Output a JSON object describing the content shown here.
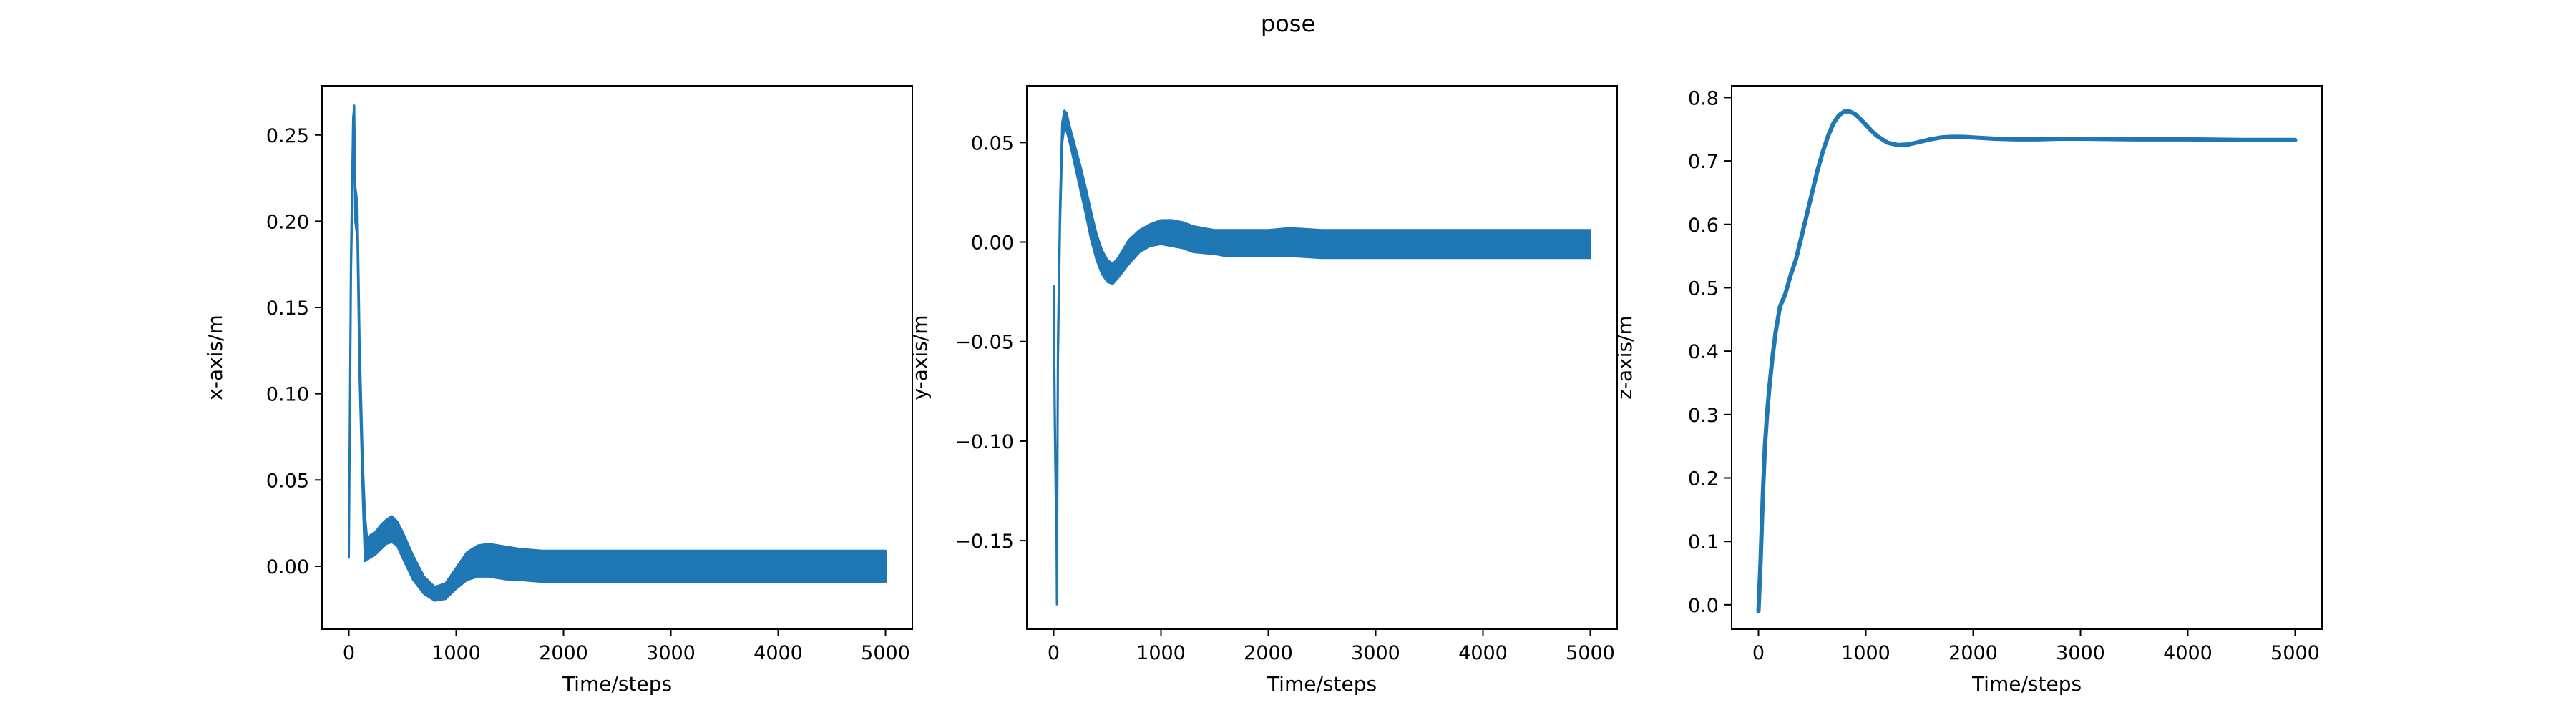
{
  "figure": {
    "title": "pose",
    "line_color": "#1f77b4"
  },
  "chart_data": [
    {
      "type": "line",
      "title": "",
      "xlabel": "Time/steps",
      "ylabel": "x-axis/m",
      "xlim": [
        -250,
        5250
      ],
      "ylim": [
        -0.0365,
        0.2785
      ],
      "xticks": [
        0,
        1000,
        2000,
        3000,
        4000,
        5000
      ],
      "xtick_labels": [
        "0",
        "1000",
        "2000",
        "3000",
        "4000",
        "5000"
      ],
      "yticks": [
        0.0,
        0.05,
        0.1,
        0.15,
        0.2,
        0.25
      ],
      "ytick_labels": [
        "0.00",
        "0.05",
        "0.10",
        "0.15",
        "0.20",
        "0.25"
      ],
      "grid": false,
      "series": [
        {
          "x": [
            0,
            20,
            40,
            50,
            60,
            80,
            100,
            130,
            150,
            170,
            200,
            250,
            300,
            350,
            400,
            450,
            500,
            600,
            700,
            800,
            900,
            1000,
            1100,
            1200,
            1300,
            1400,
            1500,
            1600,
            1800,
            2000,
            2500,
            3000,
            4000,
            5000
          ],
          "y_upper": [
            0.005,
            0.18,
            0.26,
            0.267,
            0.22,
            0.21,
            0.13,
            0.06,
            0.03,
            0.016,
            0.018,
            0.02,
            0.024,
            0.027,
            0.029,
            0.026,
            0.02,
            0.006,
            -0.006,
            -0.012,
            -0.01,
            -0.001,
            0.008,
            0.012,
            0.013,
            0.012,
            0.011,
            0.01,
            0.009,
            0.009,
            0.009,
            0.009,
            0.009,
            0.009
          ],
          "y_lower": [
            0.005,
            0.17,
            0.24,
            0.25,
            0.2,
            0.19,
            0.11,
            0.04,
            0.003,
            0.004,
            0.005,
            0.007,
            0.01,
            0.013,
            0.014,
            0.012,
            0.005,
            -0.008,
            -0.016,
            -0.02,
            -0.019,
            -0.013,
            -0.008,
            -0.006,
            -0.006,
            -0.007,
            -0.008,
            -0.008,
            -0.009,
            -0.009,
            -0.009,
            -0.009,
            -0.009,
            -0.009
          ]
        }
      ]
    },
    {
      "type": "line",
      "title": "",
      "xlabel": "Time/steps",
      "ylabel": "y-axis/m",
      "xlim": [
        -250,
        5250
      ],
      "ylim": [
        -0.1945,
        0.0785
      ],
      "xticks": [
        0,
        1000,
        2000,
        3000,
        4000,
        5000
      ],
      "xtick_labels": [
        "0",
        "1000",
        "2000",
        "3000",
        "4000",
        "5000"
      ],
      "yticks": [
        -0.15,
        -0.1,
        -0.05,
        0.0,
        0.05
      ],
      "ytick_labels": [
        "−0.15",
        "−0.10",
        "−0.05",
        "0.00",
        "0.05"
      ],
      "grid": false,
      "series": [
        {
          "x": [
            0,
            10,
            20,
            25,
            30,
            40,
            60,
            80,
            100,
            120,
            150,
            200,
            250,
            300,
            350,
            400,
            450,
            500,
            550,
            600,
            700,
            800,
            900,
            1000,
            1100,
            1200,
            1300,
            1500,
            1600,
            1800,
            2000,
            2200,
            2500,
            3000,
            4000,
            5000
          ],
          "y_upper": [
            -0.022,
            -0.08,
            -0.125,
            -0.13,
            -0.182,
            -0.05,
            0.02,
            0.06,
            0.066,
            0.065,
            0.058,
            0.048,
            0.038,
            0.027,
            0.015,
            0.004,
            -0.004,
            -0.009,
            -0.011,
            -0.008,
            0.001,
            0.006,
            0.009,
            0.011,
            0.011,
            0.01,
            0.008,
            0.006,
            0.006,
            0.006,
            0.006,
            0.007,
            0.006,
            0.006,
            0.006,
            0.006
          ],
          "y_lower": [
            -0.022,
            -0.09,
            -0.13,
            -0.135,
            -0.182,
            -0.06,
            0.01,
            0.05,
            0.058,
            0.056,
            0.05,
            0.038,
            0.026,
            0.014,
            0.001,
            -0.009,
            -0.016,
            -0.02,
            -0.021,
            -0.018,
            -0.011,
            -0.005,
            -0.002,
            -0.001,
            -0.002,
            -0.003,
            -0.005,
            -0.006,
            -0.007,
            -0.007,
            -0.007,
            -0.007,
            -0.008,
            -0.008,
            -0.008,
            -0.008
          ]
        }
      ]
    },
    {
      "type": "line",
      "title": "",
      "xlabel": "Time/steps",
      "ylabel": "z-axis/m",
      "xlim": [
        -250,
        5250
      ],
      "ylim": [
        -0.0385,
        0.8185
      ],
      "xticks": [
        0,
        1000,
        2000,
        3000,
        4000,
        5000
      ],
      "xtick_labels": [
        "0",
        "1000",
        "2000",
        "3000",
        "4000",
        "5000"
      ],
      "yticks": [
        0.0,
        0.1,
        0.2,
        0.3,
        0.4,
        0.5,
        0.6,
        0.7,
        0.8
      ],
      "ytick_labels": [
        "0.0",
        "0.1",
        "0.2",
        "0.3",
        "0.4",
        "0.5",
        "0.6",
        "0.7",
        "0.8"
      ],
      "grid": false,
      "series": [
        {
          "x": [
            0,
            20,
            40,
            60,
            80,
            100,
            130,
            160,
            200,
            250,
            300,
            350,
            400,
            450,
            500,
            550,
            600,
            650,
            700,
            750,
            800,
            850,
            900,
            950,
            1000,
            1050,
            1100,
            1200,
            1300,
            1400,
            1500,
            1600,
            1700,
            1800,
            1900,
            2000,
            2200,
            2400,
            2600,
            2800,
            3000,
            3500,
            4000,
            4500,
            5000
          ],
          "y": [
            -0.01,
            0.07,
            0.17,
            0.25,
            0.3,
            0.34,
            0.39,
            0.43,
            0.47,
            0.49,
            0.52,
            0.545,
            0.58,
            0.615,
            0.65,
            0.685,
            0.715,
            0.74,
            0.76,
            0.772,
            0.778,
            0.778,
            0.774,
            0.766,
            0.757,
            0.748,
            0.74,
            0.729,
            0.725,
            0.726,
            0.73,
            0.734,
            0.737,
            0.738,
            0.738,
            0.737,
            0.735,
            0.734,
            0.734,
            0.735,
            0.735,
            0.734,
            0.734,
            0.733,
            0.733
          ]
        }
      ]
    }
  ]
}
